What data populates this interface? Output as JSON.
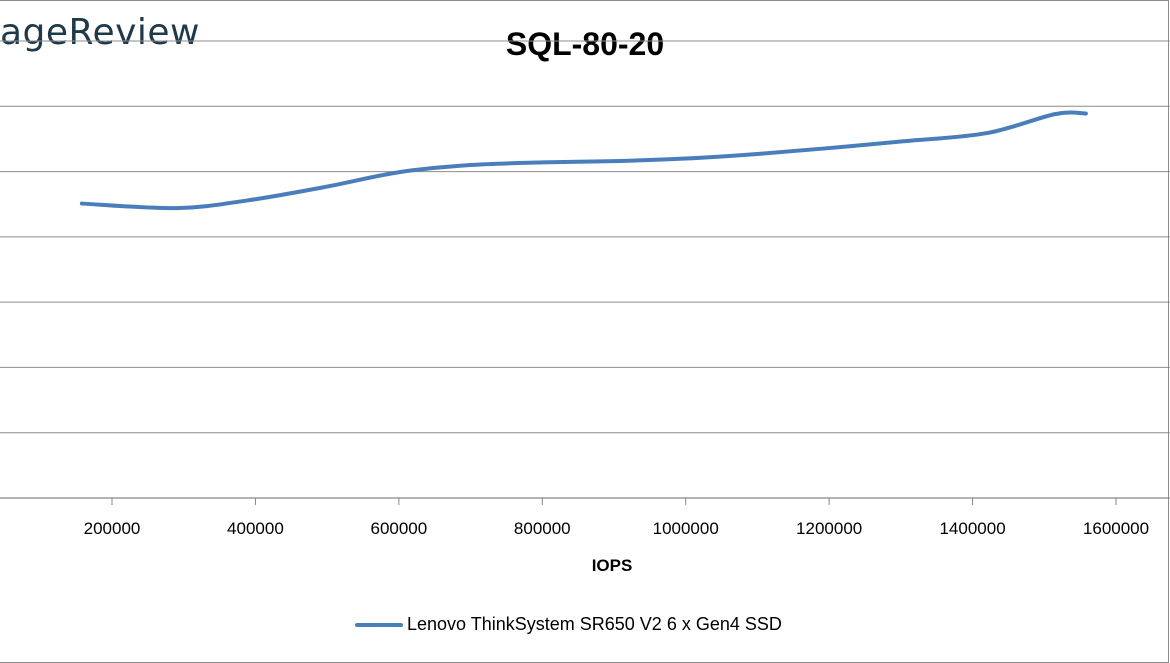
{
  "logo": {
    "text": "ageReview"
  },
  "chart_data": {
    "type": "line",
    "title": "SQL-80-20",
    "xlabel": "IOPS",
    "ylabel": "",
    "xlim": [
      100000,
      1700000
    ],
    "x_ticks": [
      200000,
      400000,
      600000,
      800000,
      1000000,
      1200000,
      1400000,
      1600000
    ],
    "x_tick_labels": [
      "200000",
      "400000",
      "600000",
      "800000",
      "1000000",
      "1200000",
      "1400000",
      "1600000"
    ],
    "ylim": [
      0,
      7
    ],
    "y_gridlines": [
      0,
      1,
      2,
      3,
      4,
      5,
      6,
      7
    ],
    "grid": true,
    "legend_position": "bottom",
    "series": [
      {
        "name": "Lenovo ThinkSystem SR650 V2 6 x Gen4 SSD",
        "color": "#4a7ebb",
        "x": [
          158000,
          290000,
          390000,
          500000,
          600000,
          700000,
          800000,
          900000,
          1000000,
          1100000,
          1200000,
          1300000,
          1420000,
          1515000,
          1558000
        ],
        "y": [
          4.51,
          4.44,
          4.56,
          4.77,
          4.99,
          5.1,
          5.14,
          5.16,
          5.2,
          5.27,
          5.36,
          5.46,
          5.59,
          5.88,
          5.89
        ]
      }
    ]
  }
}
